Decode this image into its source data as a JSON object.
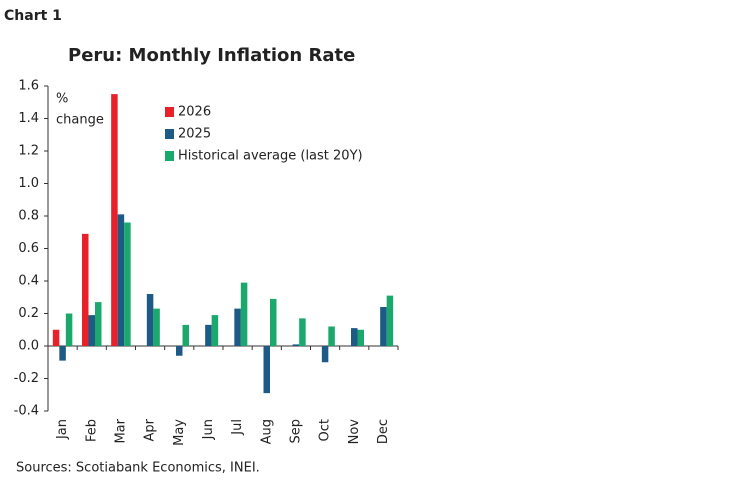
{
  "header": "Chart 1",
  "chart_data": {
    "type": "bar",
    "title": "Peru: Monthly Inflation Rate",
    "y_label": [
      "%",
      "change"
    ],
    "categories": [
      "Jan",
      "Feb",
      "Mar",
      "Apr",
      "May",
      "Jun",
      "Jul",
      "Aug",
      "Sep",
      "Oct",
      "Nov",
      "Dec"
    ],
    "series": [
      {
        "name": "2026",
        "color": "#e8202a",
        "values": [
          0.1,
          0.69,
          1.55,
          null,
          null,
          null,
          null,
          null,
          null,
          null,
          null,
          null
        ]
      },
      {
        "name": "2025",
        "color": "#1d5a86",
        "values": [
          -0.09,
          0.19,
          0.81,
          0.32,
          -0.06,
          0.13,
          0.23,
          -0.29,
          0.01,
          -0.1,
          0.11,
          0.24
        ]
      },
      {
        "name": "Historical average (last 20Y)",
        "color": "#1ba86c",
        "values": [
          0.2,
          0.27,
          0.76,
          0.23,
          0.13,
          0.19,
          0.39,
          0.29,
          0.17,
          0.12,
          0.1,
          0.31
        ]
      }
    ],
    "ylim": [
      -0.4,
      1.6
    ],
    "yticks": [
      -0.4,
      -0.2,
      {
        "value": 0,
        "label": "0.0"
      },
      0.2,
      0.4,
      0.6,
      0.8,
      {
        "value": 1,
        "label": "1.0"
      },
      1.2,
      1.4,
      1.6
    ],
    "grid": false,
    "legend": "upper left",
    "source": "Sources: Scotiabank Economics, INEI."
  }
}
